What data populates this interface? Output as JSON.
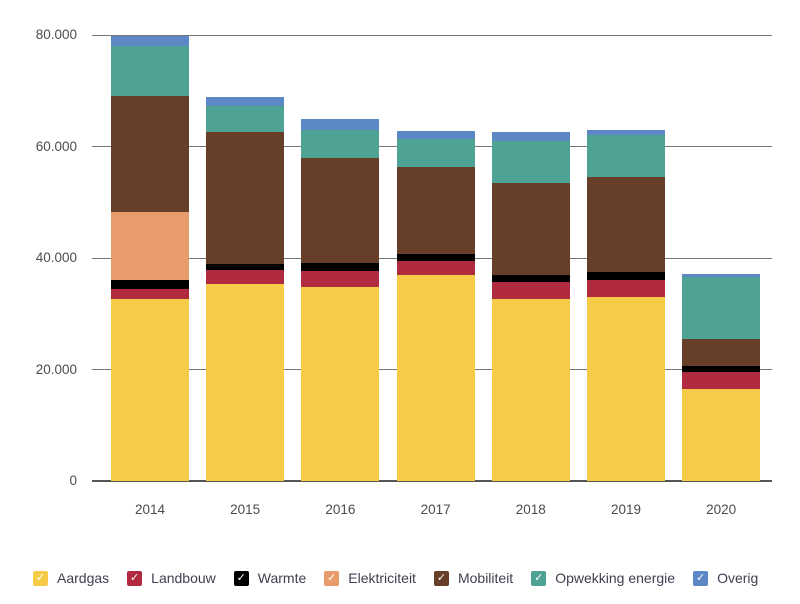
{
  "chart_data": {
    "type": "bar",
    "stacked": true,
    "title": "",
    "xlabel": "",
    "ylabel": "",
    "categories": [
      "2014",
      "2015",
      "2016",
      "2017",
      "2018",
      "2019",
      "2020"
    ],
    "series": [
      {
        "name": "Aardgas",
        "color": "#F5CB47",
        "values": [
          32600,
          35400,
          34800,
          37000,
          32700,
          33000,
          16600
        ]
      },
      {
        "name": "Landbouw",
        "color": "#B02A40",
        "values": [
          1800,
          2400,
          2900,
          2500,
          3000,
          3100,
          2900
        ]
      },
      {
        "name": "Warmte",
        "color": "#000000",
        "values": [
          1600,
          1200,
          1400,
          1200,
          1200,
          1400,
          1200
        ]
      },
      {
        "name": "Elektriciteit",
        "color": "#E99C6B",
        "values": [
          12200,
          0,
          0,
          0,
          0,
          0,
          0
        ]
      },
      {
        "name": "Mobiliteit",
        "color": "#673E27",
        "values": [
          20800,
          23600,
          18900,
          15600,
          16500,
          17100,
          4700
        ]
      },
      {
        "name": "Opwekking energie",
        "color": "#4FA394",
        "values": [
          9000,
          4600,
          4900,
          5100,
          7600,
          7500,
          11200
        ]
      },
      {
        "name": "Overig",
        "color": "#5C88C5",
        "values": [
          1900,
          1700,
          2000,
          1400,
          1600,
          900,
          600
        ]
      }
    ],
    "y_ticks": [
      {
        "value": 0,
        "label": "0"
      },
      {
        "value": 20000,
        "label": "20.000"
      },
      {
        "value": 40000,
        "label": "40.000"
      },
      {
        "value": 60000,
        "label": "60.000"
      },
      {
        "value": 80000,
        "label": "80.000"
      }
    ],
    "ylim": [
      0,
      80000
    ],
    "grid": "horizontal",
    "legend_position": "bottom"
  },
  "icons": {
    "checkmark": "✓"
  }
}
